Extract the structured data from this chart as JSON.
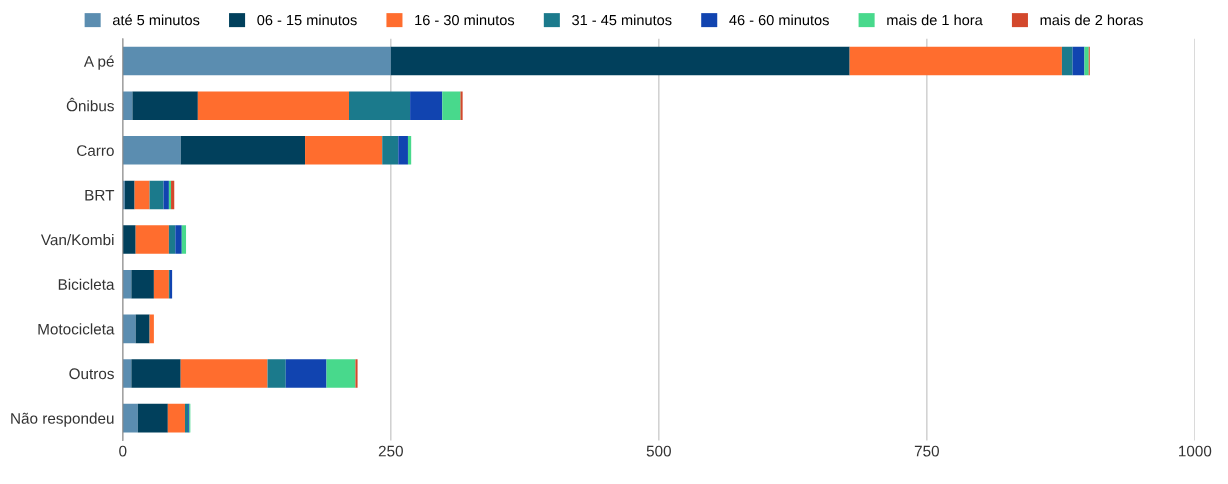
{
  "chart_data": {
    "type": "bar",
    "orientation": "horizontal",
    "stacked": true,
    "grid": "x",
    "legend": "top",
    "categories": [
      "A pé",
      "Ônibus",
      "Carro",
      "BRT",
      "Van/Kombi",
      "Bicicleta",
      "Motocicleta",
      "Outros",
      "Não respondeu"
    ],
    "xlim": [
      0,
      1000
    ],
    "xticks": [
      0,
      250,
      500,
      750,
      1000
    ],
    "series": [
      {
        "name": "até 5 minutos",
        "color": "#5b8db0",
        "values": [
          250,
          9,
          54,
          2,
          0,
          8,
          12,
          8,
          14
        ]
      },
      {
        "name": "06 - 15 minutos",
        "color": "#01405c",
        "values": [
          428,
          61,
          116,
          9,
          12,
          21,
          13,
          46,
          28
        ]
      },
      {
        "name": "16 - 30 minutos",
        "color": "#ff6d2e",
        "values": [
          198,
          141,
          72,
          14,
          31,
          14,
          4,
          81,
          16
        ]
      },
      {
        "name": "31 - 45 minutos",
        "color": "#1b7a8c",
        "values": [
          10,
          57,
          15,
          13,
          6,
          1,
          0,
          17,
          3
        ]
      },
      {
        "name": "46 - 60 minutos",
        "color": "#1144b0",
        "values": [
          11,
          30,
          9,
          5,
          6,
          2,
          0,
          38,
          1
        ]
      },
      {
        "name": "mais de 1 hora",
        "color": "#48d98c",
        "values": [
          4,
          17,
          3,
          2,
          4,
          0,
          0,
          27,
          1
        ]
      },
      {
        "name": "mais de 2 horas",
        "color": "#d3482c",
        "values": [
          1,
          2,
          0,
          3,
          0,
          0,
          0,
          2,
          0
        ]
      }
    ]
  }
}
